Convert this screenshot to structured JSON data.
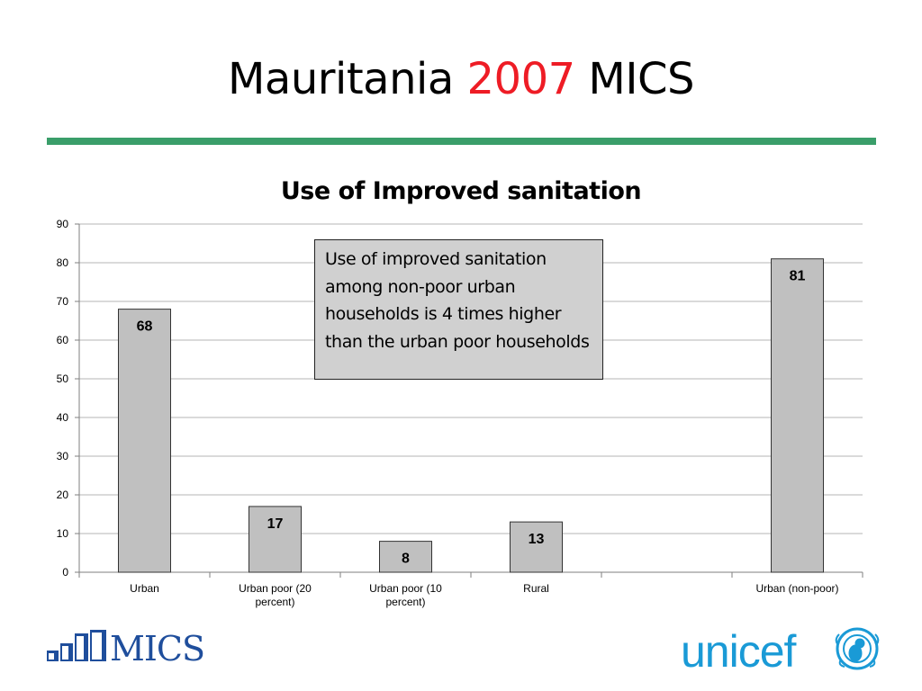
{
  "slide": {
    "title_parts": [
      "Mauritania ",
      "2007",
      " MICS"
    ],
    "accent_color": "#ee1c25",
    "rule_color": "#3a9e6a"
  },
  "callout": {
    "text": "Use of improved sanitation among non-poor urban households is 4 times higher than the urban poor households"
  },
  "logos": {
    "mics_text": "MICS",
    "mics_color": "#1f4e9c",
    "unicef_text": "unicef",
    "unicef_color": "#1a9ad6"
  },
  "chart_data": {
    "type": "bar",
    "title": "Use of Improved sanitation",
    "categories": [
      [
        "Urban"
      ],
      [
        "Urban poor (20",
        "percent)"
      ],
      [
        "Urban poor (10",
        "percent)"
      ],
      [
        "Rural"
      ],
      [
        ""
      ],
      [
        "Urban (non-poor)"
      ]
    ],
    "values": [
      68,
      17,
      8,
      13,
      null,
      81
    ],
    "data_labels": [
      "68",
      "17",
      "8",
      "13",
      "",
      "81"
    ],
    "ylim": [
      0,
      90
    ],
    "yticks": [
      0,
      10,
      20,
      30,
      40,
      50,
      60,
      70,
      80,
      90
    ],
    "grid": true,
    "legend": "none",
    "bar_color": "#c0c0c0",
    "bar_edge": "#333333"
  }
}
